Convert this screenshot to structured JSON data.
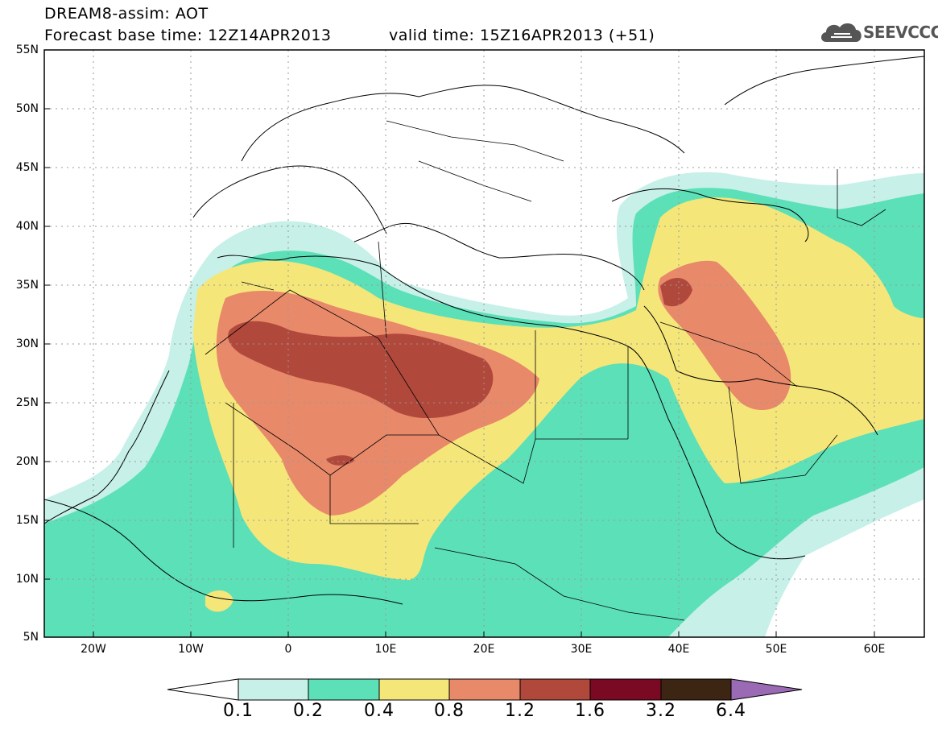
{
  "header": {
    "line1": "DREAM8-assim: AOT",
    "line2": "Forecast base time: 12Z14APR2013",
    "valid": "valid time: 15Z16APR2013 (+51)",
    "logo_text": "SEEVCCC",
    "logo_icon": "cloud-logo-icon"
  },
  "axes": {
    "lat_labels": [
      "55N",
      "50N",
      "45N",
      "40N",
      "35N",
      "30N",
      "25N",
      "20N",
      "15N",
      "10N",
      "5N"
    ],
    "lon_labels": [
      "20W",
      "10W",
      "0",
      "10E",
      "20E",
      "30E",
      "40E",
      "50E",
      "60E"
    ],
    "lat_range": [
      5,
      55
    ],
    "lon_range": [
      -25,
      65
    ]
  },
  "legend": {
    "levels": [
      "0.1",
      "0.2",
      "0.4",
      "0.8",
      "1.2",
      "1.6",
      "3.2",
      "6.4"
    ],
    "colors": [
      "#c6f0e8",
      "#5ce0b8",
      "#f5e67a",
      "#e8896a",
      "#b0483c",
      "#7a0a24",
      "#3d2514",
      "#9a6ab5"
    ],
    "under_color": "#ffffff"
  },
  "style": {
    "border_color": "#000000",
    "grid_color": "#999999"
  }
}
